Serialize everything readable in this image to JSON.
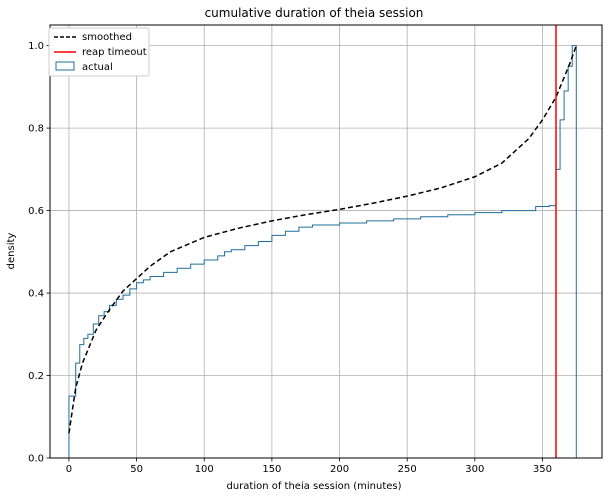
{
  "chart_data": {
    "type": "line",
    "title": "cumulative duration of theia session",
    "xlabel": "duration of theia session (minutes)",
    "ylabel": "density",
    "xlim": [
      -14,
      394
    ],
    "ylim": [
      0,
      1.05
    ],
    "xticks": [
      0,
      50,
      100,
      150,
      200,
      250,
      300,
      350
    ],
    "yticks": [
      0.0,
      0.2,
      0.4,
      0.6,
      0.8,
      1.0
    ],
    "xtick_labels": [
      "0",
      "50",
      "100",
      "150",
      "200",
      "250",
      "300",
      "350"
    ],
    "ytick_labels": [
      "0.0",
      "0.2",
      "0.4",
      "0.6",
      "0.8",
      "1.0"
    ],
    "grid": true,
    "legend_position": "top-left",
    "series": [
      {
        "name": "smoothed",
        "style": "dashed",
        "color": "#000000",
        "x": [
          0,
          5,
          10,
          20,
          30,
          40,
          50,
          60,
          75,
          100,
          125,
          150,
          175,
          200,
          225,
          250,
          275,
          300,
          320,
          340,
          350,
          360,
          365,
          370,
          375
        ],
        "y": [
          0.06,
          0.17,
          0.23,
          0.31,
          0.36,
          0.405,
          0.435,
          0.465,
          0.5,
          0.535,
          0.557,
          0.575,
          0.59,
          0.603,
          0.618,
          0.635,
          0.655,
          0.682,
          0.715,
          0.775,
          0.82,
          0.875,
          0.915,
          0.955,
          1.0
        ]
      },
      {
        "name": "reap timeout",
        "style": "vline",
        "color": "#ff0000",
        "x": 360
      },
      {
        "name": "actual",
        "style": "step",
        "color": "#1f6f9a",
        "x": [
          0,
          3,
          5,
          8,
          11,
          14,
          18,
          22,
          26,
          30,
          35,
          40,
          45,
          50,
          55,
          60,
          70,
          80,
          90,
          100,
          110,
          115,
          120,
          130,
          140,
          150,
          160,
          170,
          180,
          200,
          220,
          240,
          260,
          280,
          300,
          320,
          345,
          355,
          360,
          363,
          366,
          369,
          372,
          375
        ],
        "y": [
          0.15,
          0.15,
          0.23,
          0.275,
          0.29,
          0.3,
          0.325,
          0.345,
          0.355,
          0.37,
          0.385,
          0.395,
          0.41,
          0.425,
          0.432,
          0.44,
          0.45,
          0.46,
          0.47,
          0.48,
          0.49,
          0.5,
          0.505,
          0.515,
          0.525,
          0.54,
          0.55,
          0.56,
          0.565,
          0.57,
          0.575,
          0.58,
          0.585,
          0.59,
          0.595,
          0.6,
          0.61,
          0.612,
          0.7,
          0.82,
          0.89,
          0.95,
          1.0,
          0.0
        ]
      }
    ]
  }
}
